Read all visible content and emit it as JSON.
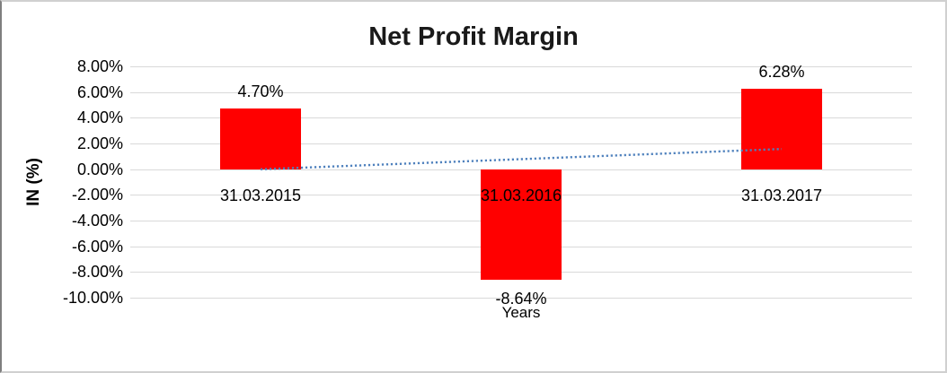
{
  "chart_data": {
    "type": "bar",
    "title": "Net Profit Margin",
    "xlabel": "Years",
    "ylabel": "IN (%)",
    "categories": [
      "31.03.2015",
      "31.03.2016",
      "31.03.2017"
    ],
    "values": [
      4.7,
      -8.64,
      6.28
    ],
    "data_labels": [
      "4.70%",
      "-8.64%",
      "6.28%"
    ],
    "ylim": [
      -10,
      8
    ],
    "ytick_values": [
      8,
      6,
      4,
      2,
      0,
      -2,
      -4,
      -6,
      -8,
      -10
    ],
    "ytick_labels": [
      "8.00%",
      "6.00%",
      "4.00%",
      "2.00%",
      "0.00%",
      "-2.00%",
      "-4.00%",
      "-6.00%",
      "-8.00%",
      "-10.00%"
    ],
    "grid": "horizontal",
    "legend": "none",
    "colors": {
      "bar": "#ff0000",
      "gridline": "#d9d9d9",
      "trendline": "#4f81bd",
      "text": "#000000"
    },
    "trendline": {
      "type": "linear",
      "style": "dotted",
      "start_value": -0.01,
      "end_value": 1.57
    }
  }
}
